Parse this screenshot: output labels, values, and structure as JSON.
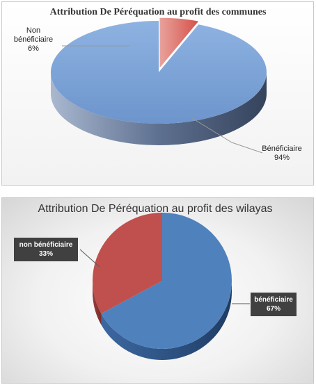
{
  "chart_data": [
    {
      "type": "pie",
      "title": "Attribution De Péréquation au profit des communes",
      "categories": [
        "Non bénéficiaire",
        "Bénéficiaire"
      ],
      "values": [
        6,
        94
      ],
      "label_lines": [
        [
          "Non",
          "bénéficiaire",
          "6%"
        ],
        [
          "Bénéficiaire",
          "94%"
        ]
      ],
      "colors": [
        "#e46c63",
        "#7aa3d6"
      ],
      "style": "3d-exploded"
    },
    {
      "type": "pie",
      "title": "Attribution De Péréquation au profit des wilayas",
      "categories": [
        "non bénéficiaire",
        "bénéficiaire"
      ],
      "values": [
        33,
        67
      ],
      "label_lines": [
        [
          "non bénéficiaire",
          "33%"
        ],
        [
          "bénéficiaire",
          "67%"
        ]
      ],
      "colors": [
        "#c0504d",
        "#4f81bd"
      ],
      "style": "3d",
      "label_box_color": "#404040"
    }
  ]
}
